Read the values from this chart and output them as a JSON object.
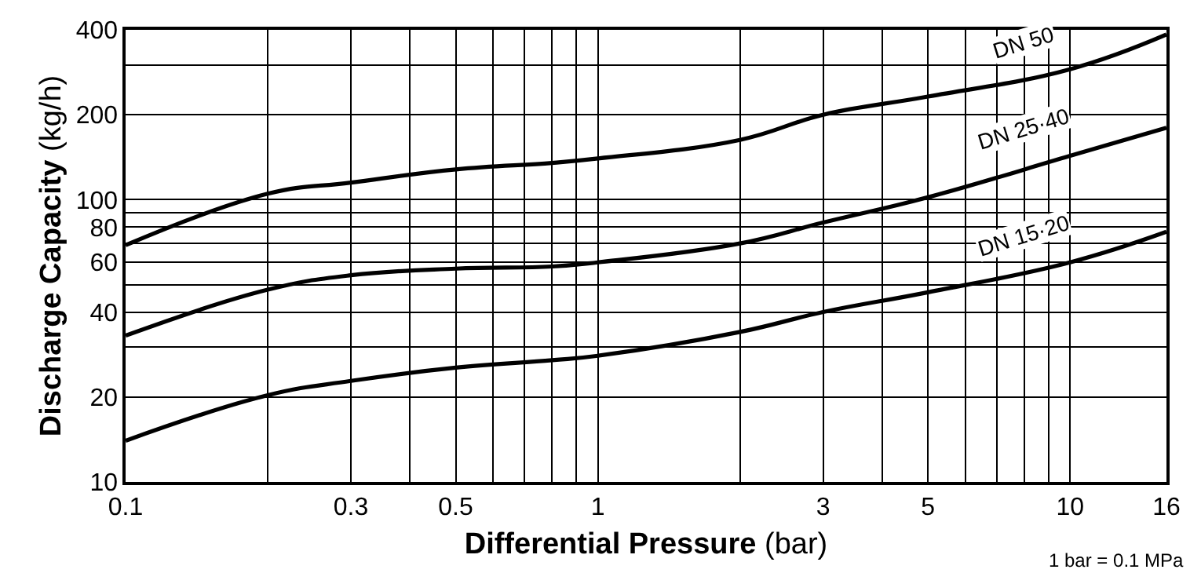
{
  "chart_data": {
    "type": "line",
    "xlabel": "Differential Pressure (bar)",
    "ylabel": "Discharge Capacity (kg/h)",
    "x": [
      0.1,
      0.2,
      0.3,
      0.5,
      0.8,
      1,
      2,
      3,
      5,
      10,
      16
    ],
    "series": [
      {
        "name": "DN 50",
        "color": "#000000",
        "values": [
          69,
          105,
          115,
          128,
          135,
          140,
          163,
          200,
          232,
          290,
          385
        ]
      },
      {
        "name": "DN 25·40",
        "color": "#000000",
        "values": [
          33,
          48,
          54,
          57,
          58,
          60,
          70,
          83,
          102,
          143,
          180
        ]
      },
      {
        "name": "DN 15·20",
        "color": "#000000",
        "values": [
          14,
          20.3,
          22.8,
          25.4,
          27,
          28,
          34,
          40,
          47,
          60,
          77
        ]
      }
    ],
    "log": "xy",
    "xlim": [
      0.1,
      16
    ],
    "ylim": [
      10,
      400
    ],
    "xticks": [
      0.1,
      {
        "value": 0.2,
        "label": null
      },
      0.3,
      {
        "value": 0.4,
        "label": null
      },
      0.5,
      {
        "value": 0.6,
        "label": null
      },
      {
        "value": 0.7,
        "label": null
      },
      {
        "value": 0.8,
        "label": null
      },
      {
        "value": 0.9,
        "label": null
      },
      1,
      {
        "value": 2,
        "label": null
      },
      3,
      {
        "value": 4,
        "label": null
      },
      5,
      {
        "value": 6,
        "label": null
      },
      {
        "value": 7,
        "label": null
      },
      {
        "value": 8,
        "label": null
      },
      {
        "value": 9,
        "label": null
      },
      10,
      16
    ],
    "yticks": [
      10,
      20,
      {
        "value": 30,
        "label": null
      },
      40,
      {
        "value": 50,
        "label": null
      },
      60,
      {
        "value": 70,
        "label": null
      },
      80,
      {
        "value": 90,
        "label": null
      },
      100,
      200,
      {
        "value": 300,
        "label": null
      },
      400
    ],
    "grid": true,
    "legend": false,
    "marker": "none",
    "line_style": "solid",
    "annotations": [
      "1 bar = 0.1 MPa"
    ]
  }
}
